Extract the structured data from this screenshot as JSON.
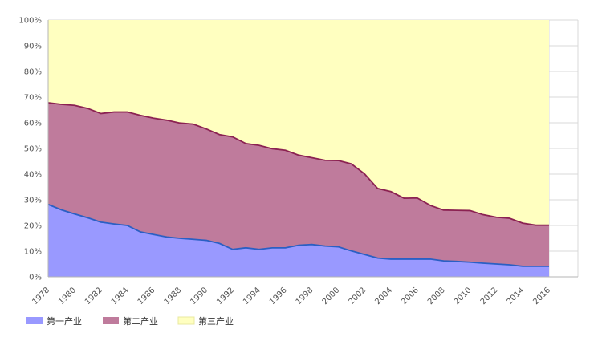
{
  "chart_data": {
    "type": "area",
    "stacked": "percent",
    "x": [
      "1978",
      "1979",
      "1980",
      "1981",
      "1982",
      "1983",
      "1984",
      "1985",
      "1986",
      "1987",
      "1988",
      "1989",
      "1990",
      "1991",
      "1992",
      "1993",
      "1994",
      "1995",
      "1996",
      "1997",
      "1998",
      "1999",
      "2000",
      "2001",
      "2002",
      "2003",
      "2004",
      "2005",
      "2006",
      "2007",
      "2008",
      "2009",
      "2010",
      "2011",
      "2012",
      "2013",
      "2014",
      "2015",
      "2016"
    ],
    "x_tick_labels": [
      "1978",
      "1980",
      "1982",
      "1984",
      "1986",
      "1988",
      "1990",
      "1992",
      "1994",
      "1996",
      "1998",
      "2000",
      "2002",
      "2004",
      "2006",
      "2008",
      "2010",
      "2012",
      "2014",
      "2016"
    ],
    "y_tick_labels": [
      "0%",
      "10%",
      "20%",
      "30%",
      "40%",
      "50%",
      "60%",
      "70%",
      "80%",
      "90%",
      "100%"
    ],
    "ylim": [
      0,
      100
    ],
    "grid": true,
    "legend_position": "bottom-left",
    "series": [
      {
        "name": "第一产业",
        "color": "#9999ff",
        "line_color": "#2a5fc4",
        "values": [
          28.2,
          26.1,
          24.5,
          23.0,
          21.3,
          20.6,
          20.0,
          17.5,
          16.5,
          15.5,
          15.0,
          14.6,
          14.2,
          13.0,
          10.7,
          11.3,
          10.7,
          11.3,
          11.3,
          12.3,
          12.6,
          12.0,
          11.7,
          10.1,
          8.7,
          7.3,
          6.9,
          6.9,
          6.9,
          6.9,
          6.2,
          6.0,
          5.7,
          5.3,
          5.0,
          4.7,
          4.1,
          4.1,
          4.1
        ]
      },
      {
        "name": "第二产业",
        "color": "#bf7b9c",
        "line_color": "#8b2252",
        "values": [
          39.6,
          41.1,
          42.3,
          42.6,
          42.3,
          43.6,
          44.2,
          45.4,
          45.3,
          45.5,
          44.9,
          44.9,
          43.4,
          42.4,
          43.8,
          40.6,
          40.5,
          38.6,
          38.0,
          35.1,
          33.8,
          33.4,
          33.6,
          33.9,
          31.4,
          27.1,
          26.3,
          23.7,
          23.8,
          20.9,
          19.8,
          19.9,
          20.1,
          18.9,
          18.2,
          18.1,
          16.8,
          16.0,
          16.0
        ]
      },
      {
        "name": "第三产业",
        "color": "#ffffc0",
        "line_color": "#ffffc0",
        "values": [
          32.2,
          32.8,
          33.2,
          34.4,
          36.4,
          35.8,
          35.8,
          37.1,
          38.2,
          39.0,
          40.1,
          40.5,
          42.4,
          44.6,
          45.5,
          48.1,
          48.8,
          50.1,
          50.7,
          52.6,
          53.6,
          54.6,
          54.7,
          56.0,
          59.9,
          65.6,
          66.8,
          69.4,
          69.3,
          72.2,
          74.0,
          74.1,
          74.2,
          75.8,
          76.8,
          77.2,
          79.1,
          79.9,
          79.9
        ]
      }
    ]
  }
}
